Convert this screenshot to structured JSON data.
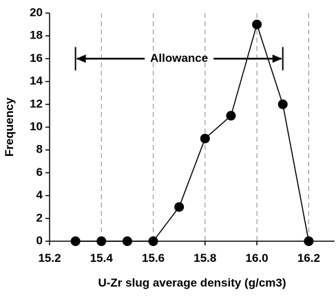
{
  "chart_data": {
    "type": "line",
    "title": "",
    "xlabel": "U-Zr slug average density (g/cm3)",
    "ylabel": "Frequency",
    "xlim": [
      15.2,
      16.3
    ],
    "ylim": [
      0,
      20
    ],
    "x_ticks": [
      15.2,
      15.4,
      15.6,
      15.8,
      16.0,
      16.2
    ],
    "x_tick_labels": [
      "15.2",
      "15.4",
      "15.6",
      "15.8",
      "16.0",
      "16.2"
    ],
    "y_ticks": [
      0,
      2,
      4,
      6,
      8,
      10,
      12,
      14,
      16,
      18,
      20
    ],
    "y_tick_labels": [
      "0",
      "2",
      "4",
      "6",
      "8",
      "10",
      "12",
      "14",
      "16",
      "18",
      "20"
    ],
    "vertical_gridlines": "dashed",
    "series": [
      {
        "x": [
          15.3,
          15.4,
          15.5,
          15.6,
          15.7,
          15.8,
          15.9,
          16.0,
          16.1,
          16.2
        ],
        "values": [
          0,
          0,
          0,
          0,
          3,
          9,
          11,
          19,
          12,
          0
        ]
      }
    ],
    "annotation": {
      "text": "Allowance",
      "x_start": 15.3,
      "x_end": 16.1,
      "y": 16
    }
  }
}
